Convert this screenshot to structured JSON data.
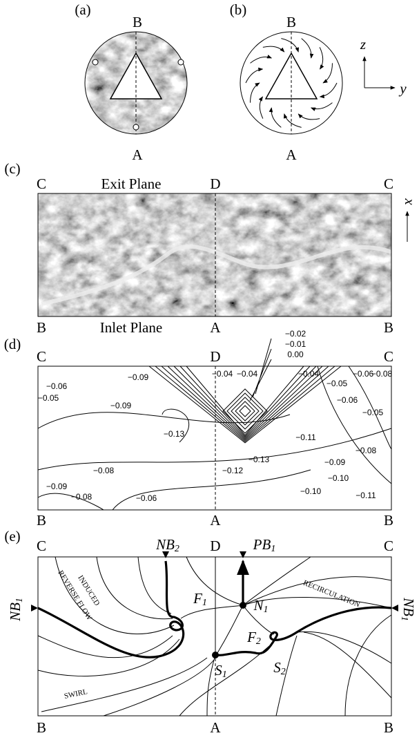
{
  "figure": {
    "panel_a": {
      "label": "(a)",
      "top": "B",
      "bottom": "A"
    },
    "panel_b": {
      "label": "(b)",
      "top": "B",
      "bottom": "A",
      "axis_vertical": "z",
      "axis_horizontal": "y"
    },
    "panel_c": {
      "label": "(c)",
      "corners_top": [
        "C",
        "D",
        "C"
      ],
      "top_title": "Exit Plane",
      "corners_bottom": [
        "B",
        "A",
        "B"
      ],
      "bottom_title": "Inlet Plane",
      "axis": "x"
    },
    "panel_d": {
      "label": "(d)",
      "corners_top": [
        "C",
        "D",
        "C"
      ],
      "corners_bottom": [
        "B",
        "A",
        "B"
      ],
      "contour_labels": [
        "−0.02",
        "−0.01",
        "0.00",
        "−0.04",
        "−0.04",
        "−0.04",
        "−0.05",
        "−0.06",
        "−0.08",
        "−0.06",
        "−0.05",
        "−0.09",
        "−0.09",
        "−0.05",
        "−0.06",
        "−0.13",
        "−0.13",
        "−0.11",
        "−0.08",
        "−0.09",
        "−0.10",
        "−0.12",
        "−0.08",
        "−0.09",
        "−0.08",
        "−0.06",
        "−0.10",
        "−0.11"
      ]
    },
    "panel_e": {
      "label": "(e)",
      "corners_top": [
        "C",
        "D",
        "C"
      ],
      "corners_bottom": [
        "B",
        "A",
        "B"
      ],
      "NB2": {
        "base": "NB",
        "sub": "2"
      },
      "PB1": {
        "base": "PB",
        "sub": "1"
      },
      "N1": {
        "base": "N",
        "sub": "1"
      },
      "F1": {
        "base": "F",
        "sub": "1"
      },
      "F2": {
        "base": "F",
        "sub": "2"
      },
      "S1": {
        "base": "S",
        "sub": "1"
      },
      "S2": {
        "base": "S",
        "sub": "2"
      },
      "NB1_left": {
        "base": "NB",
        "sub": "1"
      },
      "NB1_right": {
        "base": "NB",
        "sub": "1"
      },
      "induced": [
        "INDUCED",
        "REVERSE FLOW"
      ],
      "recirculation": "RECIRCULATION",
      "swirl": "SWIRL"
    }
  }
}
